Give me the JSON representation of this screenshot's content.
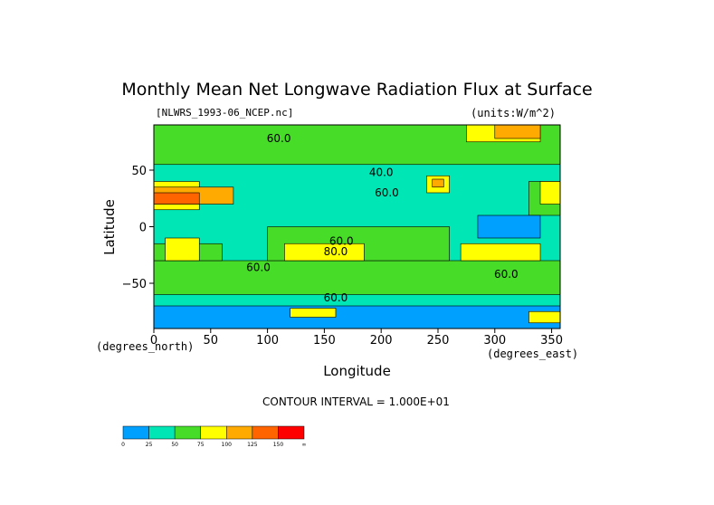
{
  "chart_data": {
    "type": "heatmap",
    "title": "Monthly Mean Net Longwave Radiation Flux at Surface",
    "subtitle": "[NLWRS_1993-06_NCEP.nc]",
    "units_label": "(units:W/m^2)",
    "xlabel": "Longitude",
    "ylabel": "Latitude",
    "x_unit_label": "(degrees_east)",
    "y_unit_label": "(degrees_north)",
    "xlim": [
      0,
      357.5
    ],
    "ylim": [
      -90,
      90
    ],
    "x_ticks": [
      0,
      50,
      100,
      150,
      200,
      250,
      300,
      350
    ],
    "y_ticks": [
      50,
      0,
      -50
    ],
    "contour_interval_label": "CONTOUR INTERVAL = 1.000E+01",
    "contour_labels": [
      {
        "text": "60.0",
        "lon": 110,
        "lat": 75
      },
      {
        "text": "40.0",
        "lon": 200,
        "lat": 45
      },
      {
        "text": "60.0",
        "lon": 205,
        "lat": 27
      },
      {
        "text": "80.0",
        "lon": 160,
        "lat": -25
      },
      {
        "text": "60.0",
        "lon": 165,
        "lat": -16
      },
      {
        "text": "60.0",
        "lon": 92,
        "lat": -39
      },
      {
        "text": "60.0",
        "lon": 310,
        "lat": -45
      },
      {
        "text": "60.0",
        "lon": 160,
        "lat": -66
      }
    ],
    "colorbar": {
      "labels": [
        "0",
        "25",
        "50",
        "75",
        "100",
        "125",
        "150",
        "∞"
      ],
      "colors": [
        "#00a0ff",
        "#00e6b4",
        "#46dc28",
        "#ffff00",
        "#ffaa00",
        "#ff6400",
        "#ff0000"
      ]
    },
    "regions": [
      {
        "level": 1,
        "lon_range": [
          0,
          360
        ],
        "lat_range": [
          -90,
          90
        ]
      },
      {
        "level": 2,
        "lon_range": [
          0,
          360
        ],
        "lat_range": [
          55,
          90
        ]
      },
      {
        "level": 2,
        "lon_range": [
          0,
          360
        ],
        "lat_range": [
          -60,
          -30
        ]
      },
      {
        "level": 2,
        "lon_range": [
          100,
          260
        ],
        "lat_range": [
          -30,
          0
        ]
      },
      {
        "level": 2,
        "lon_range": [
          0,
          60
        ],
        "lat_range": [
          -30,
          -15
        ]
      },
      {
        "level": 2,
        "lon_range": [
          330,
          360
        ],
        "lat_range": [
          10,
          40
        ]
      },
      {
        "level": 0,
        "lon_range": [
          285,
          340
        ],
        "lat_range": [
          -10,
          10
        ]
      },
      {
        "level": 3,
        "lon_range": [
          115,
          185
        ],
        "lat_range": [
          -30,
          -15
        ]
      },
      {
        "level": 3,
        "lon_range": [
          10,
          40
        ],
        "lat_range": [
          -30,
          -10
        ]
      },
      {
        "level": 3,
        "lon_range": [
          0,
          40
        ],
        "lat_range": [
          15,
          40
        ]
      },
      {
        "level": 4,
        "lon_range": [
          0,
          70
        ],
        "lat_range": [
          20,
          35
        ]
      },
      {
        "level": 5,
        "lon_range": [
          0,
          40
        ],
        "lat_range": [
          20,
          30
        ]
      },
      {
        "level": 3,
        "lon_range": [
          240,
          260
        ],
        "lat_range": [
          30,
          45
        ]
      },
      {
        "level": 4,
        "lon_range": [
          245,
          255
        ],
        "lat_range": [
          35,
          42
        ]
      },
      {
        "level": 3,
        "lon_range": [
          270,
          340
        ],
        "lat_range": [
          -30,
          -15
        ]
      },
      {
        "level": 3,
        "lon_range": [
          340,
          360
        ],
        "lat_range": [
          20,
          40
        ]
      },
      {
        "level": 3,
        "lon_range": [
          275,
          340
        ],
        "lat_range": [
          75,
          90
        ]
      },
      {
        "level": 4,
        "lon_range": [
          300,
          340
        ],
        "lat_range": [
          78,
          90
        ]
      },
      {
        "level": 0,
        "lon_range": [
          0,
          360
        ],
        "lat_range": [
          -90,
          -70
        ]
      },
      {
        "level": 3,
        "lon_range": [
          120,
          160
        ],
        "lat_range": [
          -80,
          -72
        ]
      },
      {
        "level": 3,
        "lon_range": [
          330,
          360
        ],
        "lat_range": [
          -85,
          -75
        ]
      }
    ]
  }
}
